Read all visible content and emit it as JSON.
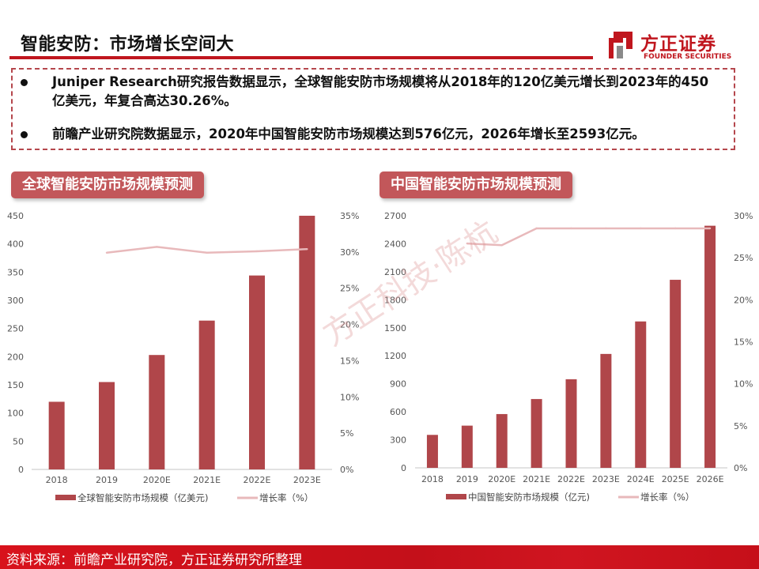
{
  "header": {
    "title": "智能安防：市场增长空间大"
  },
  "logo": {
    "name_cn": "方正证券",
    "name_en": "FOUNDER SECURITIES"
  },
  "notes": [
    "Juniper Research研究报告数据显示，全球智能安防市场规模将从2018年的120亿美元增长到2023年的450亿美元，年复合高达30.26%。",
    "前瞻产业研究院数据显示，2020年中国智能安防市场规模达到576亿元，2026年增长至2593亿元。"
  ],
  "sections": {
    "global": "全球智能安防市场规模预测",
    "china": "中国智能安防市场规模预测"
  },
  "watermark": "方正科技·陈杭",
  "footer": {
    "source": "资料来源：前瞻产业研究院，方正证券研究所整理"
  },
  "colors": {
    "bar": "#b0464a",
    "line": "#e8b9bb",
    "brand": "#c0161e"
  },
  "chart_data": [
    {
      "type": "bar",
      "title": "全球智能安防市场规模预测",
      "categories": [
        "2018",
        "2019",
        "2020E",
        "2021E",
        "2022E",
        "2023E"
      ],
      "series": [
        {
          "name": "全球智能安防市场规模（亿美元)",
          "type": "bar",
          "axis": "left",
          "values": [
            120,
            155,
            203,
            264,
            344,
            450
          ]
        },
        {
          "name": "增长率（%）",
          "type": "line",
          "axis": "right",
          "values": [
            null,
            29.9,
            30.7,
            29.9,
            30.1,
            30.4
          ]
        }
      ],
      "ylim": [
        0,
        450
      ],
      "yticks": [
        "0",
        "50",
        "100",
        "150",
        "200",
        "250",
        "300",
        "350",
        "400",
        "450"
      ],
      "y2lim": [
        0,
        35
      ],
      "y2ticks": [
        "0%",
        "5%",
        "10%",
        "15%",
        "20%",
        "25%",
        "30%",
        "35%"
      ],
      "legend": "bottom"
    },
    {
      "type": "bar",
      "title": "中国智能安防市场规模预测",
      "categories": [
        "2018",
        "2019",
        "2020E",
        "2021E",
        "2022E",
        "2023E",
        "2024E",
        "2025E",
        "2026E"
      ],
      "series": [
        {
          "name": "中国智能安防市场规模（亿元)",
          "type": "bar",
          "axis": "left",
          "values": [
            353,
            452,
            576,
            737,
            949,
            1220,
            1568,
            2014,
            2593
          ]
        },
        {
          "name": "增长率（%）",
          "type": "line",
          "axis": "right",
          "values": [
            null,
            26.7,
            26.5,
            28.5,
            28.5,
            28.5,
            28.5,
            28.5,
            28.5
          ]
        }
      ],
      "ylim": [
        0,
        2700
      ],
      "yticks": [
        "0",
        "300",
        "600",
        "900",
        "1200",
        "1500",
        "1800",
        "2100",
        "2400",
        "2700"
      ],
      "y2lim": [
        0,
        30
      ],
      "y2ticks": [
        "0%",
        "5%",
        "10%",
        "15%",
        "20%",
        "25%",
        "30%"
      ],
      "legend": "bottom"
    }
  ]
}
